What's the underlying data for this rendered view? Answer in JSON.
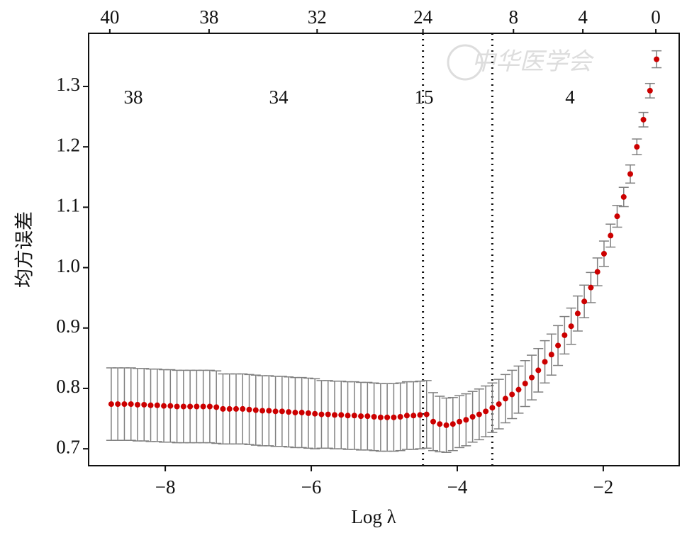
{
  "chart_data": {
    "type": "errorbar",
    "x_label": "Log λ",
    "y_label": "均方误差",
    "watermark": "中华医学会",
    "x": [
      -8.74,
      -8.65,
      -8.56,
      -8.47,
      -8.38,
      -8.29,
      -8.2,
      -8.11,
      -8.02,
      -7.93,
      -7.84,
      -7.75,
      -7.66,
      -7.57,
      -7.48,
      -7.39,
      -7.3,
      -7.21,
      -7.12,
      -7.03,
      -6.94,
      -6.85,
      -6.76,
      -6.67,
      -6.58,
      -6.49,
      -6.4,
      -6.31,
      -6.22,
      -6.13,
      -6.04,
      -5.95,
      -5.86,
      -5.77,
      -5.68,
      -5.59,
      -5.5,
      -5.41,
      -5.32,
      -5.23,
      -5.14,
      -5.05,
      -4.96,
      -4.87,
      -4.78,
      -4.69,
      -4.6,
      -4.51,
      -4.42,
      -4.33,
      -4.24,
      -4.15,
      -4.06,
      -3.97,
      -3.88,
      -3.79,
      -3.7,
      -3.61,
      -3.52,
      -3.43,
      -3.34,
      -3.25,
      -3.16,
      -3.07,
      -2.98,
      -2.89,
      -2.8,
      -2.71,
      -2.62,
      -2.53,
      -2.44,
      -2.35,
      -2.26,
      -2.17,
      -2.08,
      -1.99,
      -1.9,
      -1.81,
      -1.72,
      -1.63,
      -1.54,
      -1.45,
      -1.36,
      -1.27
    ],
    "series": [
      {
        "color": "#cc0000",
        "values": [
          0.774,
          0.774,
          0.774,
          0.774,
          0.773,
          0.773,
          0.772,
          0.772,
          0.771,
          0.771,
          0.77,
          0.77,
          0.77,
          0.77,
          0.77,
          0.77,
          0.769,
          0.766,
          0.766,
          0.766,
          0.766,
          0.765,
          0.764,
          0.763,
          0.763,
          0.762,
          0.762,
          0.761,
          0.76,
          0.76,
          0.759,
          0.758,
          0.757,
          0.757,
          0.756,
          0.756,
          0.755,
          0.755,
          0.754,
          0.754,
          0.753,
          0.752,
          0.752,
          0.752,
          0.753,
          0.755,
          0.755,
          0.756,
          0.757,
          0.745,
          0.741,
          0.739,
          0.741,
          0.745,
          0.748,
          0.753,
          0.757,
          0.762,
          0.768,
          0.774,
          0.783,
          0.79,
          0.798,
          0.808,
          0.818,
          0.83,
          0.844,
          0.856,
          0.871,
          0.888,
          0.903,
          0.924,
          0.944,
          0.967,
          0.993,
          1.023,
          1.053,
          1.085,
          1.117,
          1.155,
          1.2,
          1.245,
          1.293,
          1.345
        ],
        "errors": [
          0.06,
          0.06,
          0.06,
          0.06,
          0.06,
          0.06,
          0.06,
          0.06,
          0.06,
          0.06,
          0.06,
          0.06,
          0.06,
          0.06,
          0.06,
          0.06,
          0.06,
          0.058,
          0.058,
          0.058,
          0.058,
          0.058,
          0.058,
          0.058,
          0.058,
          0.058,
          0.058,
          0.058,
          0.058,
          0.058,
          0.058,
          0.058,
          0.056,
          0.056,
          0.056,
          0.056,
          0.056,
          0.056,
          0.056,
          0.056,
          0.056,
          0.056,
          0.056,
          0.056,
          0.056,
          0.056,
          0.056,
          0.056,
          0.056,
          0.048,
          0.046,
          0.045,
          0.044,
          0.043,
          0.043,
          0.042,
          0.042,
          0.042,
          0.041,
          0.041,
          0.04,
          0.04,
          0.039,
          0.038,
          0.037,
          0.036,
          0.035,
          0.034,
          0.033,
          0.031,
          0.03,
          0.029,
          0.027,
          0.025,
          0.023,
          0.021,
          0.019,
          0.018,
          0.016,
          0.015,
          0.013,
          0.012,
          0.012,
          0.014
        ]
      }
    ],
    "error_color": "#808080",
    "xlim": [
      -9.05,
      -0.96
    ],
    "ylim": [
      0.672,
      1.388
    ],
    "xticks": [
      {
        "value": -8,
        "label": "−8"
      },
      {
        "value": -6,
        "label": "−6"
      },
      {
        "value": -4,
        "label": "−4"
      },
      {
        "value": -2,
        "label": "−2"
      }
    ],
    "yticks": [
      0.7,
      0.8,
      0.9,
      {
        "value": 1,
        "label": "1.0"
      },
      1.1,
      1.2,
      1.3
    ],
    "x2ticks": [
      {
        "value": -8.76,
        "label": "40"
      },
      {
        "value": -7.4,
        "label": "38"
      },
      {
        "value": -5.92,
        "label": "32"
      },
      {
        "value": -4.47,
        "label": "24"
      },
      {
        "value": -3.23,
        "label": "8"
      },
      {
        "value": -2.28,
        "label": "4"
      },
      {
        "value": -1.28,
        "label": "0"
      }
    ],
    "annotations": [
      "38",
      "34",
      "15",
      "4"
    ],
    "vlines": [
      -4.47,
      -3.52
    ]
  }
}
